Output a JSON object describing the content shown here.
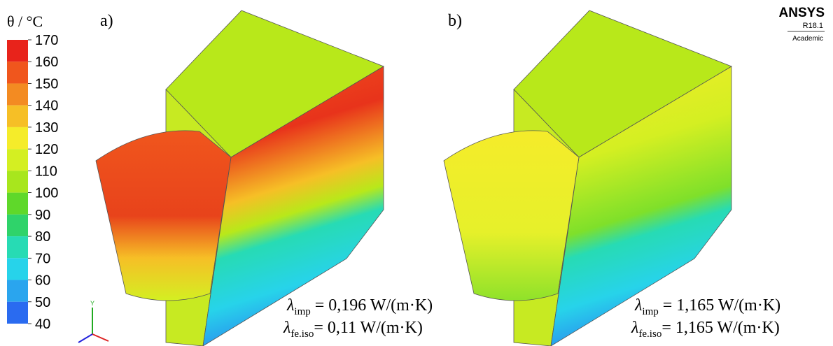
{
  "legend": {
    "title": "θ / °C",
    "ticks": [
      170,
      160,
      150,
      140,
      130,
      120,
      110,
      100,
      90,
      80,
      70,
      60,
      50,
      40
    ],
    "colors": [
      "#e8231b",
      "#f0561d",
      "#f38b22",
      "#f6bf26",
      "#f5ec2a",
      "#d4ef22",
      "#a8e61d",
      "#5fd82a",
      "#2fd36a",
      "#27dbb4",
      "#27d3ea",
      "#2aa5ee",
      "#2a6bf0"
    ]
  },
  "triad": {
    "axis_label": "Y"
  },
  "logo": {
    "brand": "ANSYS",
    "version": "R18.1",
    "edition": "Academic"
  },
  "panels": [
    {
      "label": "a)",
      "lines": [
        {
          "symbol": "λ",
          "sub": "imp",
          "text": " = 0,196 W/(m·K)"
        },
        {
          "symbol": "λ",
          "sub": "fe.iso",
          "text": "= 0,11 W/(m·K)"
        }
      ]
    },
    {
      "label": "b)",
      "lines": [
        {
          "symbol": "λ",
          "sub": "imp",
          "text": " = 1,165 W/(m·K)"
        },
        {
          "symbol": "λ",
          "sub": "fe.iso",
          "text": "= 1,165 W/(m·K)"
        }
      ]
    }
  ]
}
